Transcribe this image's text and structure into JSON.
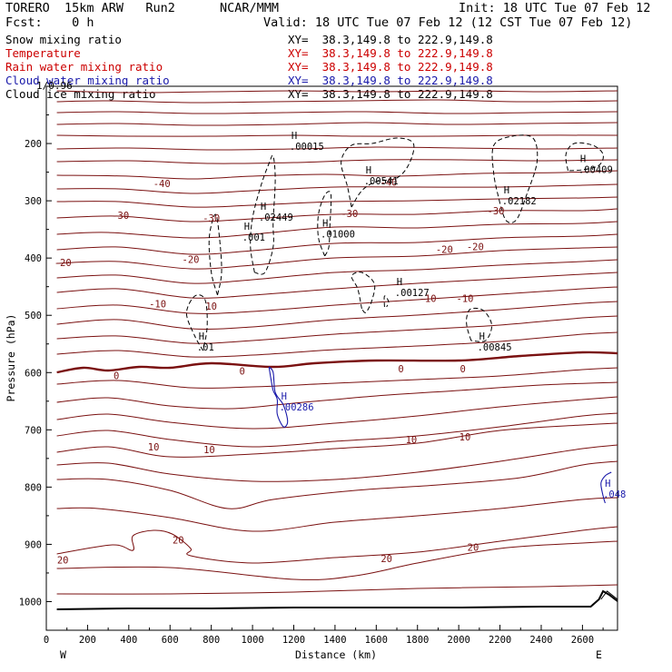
{
  "header": {
    "model": "TORERO  15km ARW   Run2",
    "org": "NCAR/MMM",
    "init": "Init: 18 UTC Tue 07 Feb 12",
    "fcst": "Fcst:    0 h",
    "valid": "Valid: 18 UTC Tue 07 Feb 12 (12 CST Tue 07 Feb 12)",
    "corner": "1/0.96"
  },
  "fields": [
    {
      "name": "Snow mixing ratio",
      "xy": "XY=  38.3,149.8 to 222.9,149.8",
      "color": "#000000",
      "xycolor": "#000000"
    },
    {
      "name": "Temperature",
      "xy": "XY=  38.3,149.8 to 222.9,149.8",
      "color": "#cc0000",
      "xycolor": "#cc0000"
    },
    {
      "name": "Rain water mixing ratio",
      "xy": "XY=  38.3,149.8 to 222.9,149.8",
      "color": "#cc0000",
      "xycolor": "#cc0000"
    },
    {
      "name": "Cloud water mixing ratio",
      "xy": "XY=  38.3,149.8 to 222.9,149.8",
      "color": "#1a1aaa",
      "xycolor": "#1a1aaa"
    },
    {
      "name": "Cloud ice mixing ratio",
      "xy": "XY=  38.3,149.8 to 222.9,149.8",
      "color": "#000000",
      "xycolor": "#000000"
    }
  ],
  "colors": {
    "temp": "#7a1010",
    "snow": "#000000",
    "cloudwater": "#1a1aaa",
    "terrain": "#000000"
  },
  "chart_data": {
    "type": "cross-section contour",
    "xlabel": "Distance (km)",
    "ylabel": "Pressure (hPa)",
    "xlim": [
      0,
      2770
    ],
    "ylim": [
      1050,
      100
    ],
    "xticks": [
      0,
      200,
      400,
      600,
      800,
      1000,
      1200,
      1400,
      1600,
      1800,
      2000,
      2200,
      2400,
      2600
    ],
    "yticks": [
      200,
      300,
      400,
      500,
      600,
      700,
      800,
      900,
      1000
    ],
    "x_end_labels": {
      "left": "W",
      "right": "E"
    },
    "temperature_labels": [
      {
        "text": "-40",
        "x": 560,
        "p": 270
      },
      {
        "text": "-40",
        "x": 1660,
        "p": 267
      },
      {
        "text": "-30",
        "x": 360,
        "p": 325
      },
      {
        "text": "-30",
        "x": 800,
        "p": 330
      },
      {
        "text": "-30",
        "x": 1470,
        "p": 322
      },
      {
        "text": "-30",
        "x": 2180,
        "p": 317
      },
      {
        "text": "-20",
        "x": 80,
        "p": 408
      },
      {
        "text": "-20",
        "x": 700,
        "p": 402
      },
      {
        "text": "-20",
        "x": 1930,
        "p": 385
      },
      {
        "text": "-20",
        "x": 2080,
        "p": 380
      },
      {
        "text": "-10",
        "x": 540,
        "p": 480
      },
      {
        "text": "-10",
        "x": 1850,
        "p": 470
      },
      {
        "text": "-10",
        "x": 2030,
        "p": 470
      },
      {
        "text": "10",
        "x": 800,
        "p": 484
      },
      {
        "text": "0",
        "x": 340,
        "p": 605
      },
      {
        "text": "0",
        "x": 950,
        "p": 597
      },
      {
        "text": "0",
        "x": 1720,
        "p": 593
      },
      {
        "text": "0",
        "x": 2020,
        "p": 593
      },
      {
        "text": "10",
        "x": 520,
        "p": 730
      },
      {
        "text": "10",
        "x": 790,
        "p": 734
      },
      {
        "text": "10",
        "x": 1770,
        "p": 717
      },
      {
        "text": "10",
        "x": 2030,
        "p": 712
      },
      {
        "text": "20",
        "x": 640,
        "p": 892
      },
      {
        "text": "20",
        "x": 80,
        "p": 927
      },
      {
        "text": "20",
        "x": 1650,
        "p": 925
      },
      {
        "text": "20",
        "x": 2070,
        "p": 905
      }
    ],
    "hydrometeor_maxima": [
      {
        "field": "Snow mixing ratio",
        "label": ".00015",
        "x": 1180,
        "p": 205
      },
      {
        "field": "Snow mixing ratio",
        "label": ".00541",
        "x": 1540,
        "p": 265
      },
      {
        "field": "Snow mixing ratio",
        "label": ".00409",
        "x": 2580,
        "p": 245
      },
      {
        "field": "Snow mixing ratio",
        "label": ".02182",
        "x": 2210,
        "p": 300
      },
      {
        "field": "Snow mixing ratio",
        "label": ".02449",
        "x": 1030,
        "p": 328
      },
      {
        "field": "Snow mixing ratio",
        "label": ".001",
        "x": 950,
        "p": 363
      },
      {
        "field": "Snow mixing ratio",
        "label": ".01000",
        "x": 1330,
        "p": 358
      },
      {
        "field": "Snow mixing ratio",
        "label": ".00127",
        "x": 1690,
        "p": 460
      },
      {
        "field": "Snow mixing ratio",
        "label": ".01",
        "x": 730,
        "p": 555
      },
      {
        "field": "Snow mixing ratio",
        "label": ".00845",
        "x": 2090,
        "p": 555
      },
      {
        "field": "Cloud water mixing ratio",
        "label": ".00286",
        "x": 1130,
        "p": 660
      },
      {
        "field": "Cloud water mixing ratio",
        "label": ".048",
        "x": 2700,
        "p": 812
      }
    ]
  }
}
